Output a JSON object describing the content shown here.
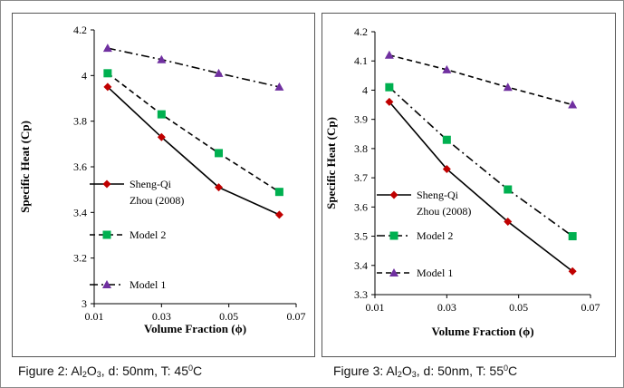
{
  "colors": {
    "model1": "#7030a0",
    "model2": "#00b050",
    "sheng": "#c00000",
    "line": "#000000"
  },
  "chart_data": [
    {
      "type": "line",
      "xlabel": "Volume Fraction (ϕ)",
      "ylabel": "Specific Heat (Cp)",
      "xlim": [
        0.01,
        0.07
      ],
      "ylim": [
        3,
        4.2
      ],
      "xticks": [
        "0.01",
        "0.03",
        "0.05",
        "0.07"
      ],
      "yticks": [
        "3",
        "3.2",
        "3.4",
        "3.6",
        "3.8",
        "4",
        "4.2"
      ],
      "grid": false,
      "legend_position": "left-inside",
      "series": [
        {
          "name": "Sheng-Qi Zhou (2008)",
          "legend_lines": [
            "Sheng-Qi",
            "Zhou (2008)"
          ],
          "marker": "diamond",
          "color_key": "sheng",
          "dash": "solid",
          "x": [
            0.014,
            0.03,
            0.047,
            0.065
          ],
          "y": [
            3.95,
            3.73,
            3.51,
            3.39
          ]
        },
        {
          "name": "Model 2",
          "legend_lines": [
            "Model 2"
          ],
          "marker": "square",
          "color_key": "model2",
          "dash": "dashed",
          "x": [
            0.014,
            0.03,
            0.047,
            0.065
          ],
          "y": [
            4.01,
            3.83,
            3.66,
            3.49
          ]
        },
        {
          "name": "Model 1",
          "legend_lines": [
            "Model 1"
          ],
          "marker": "triangle",
          "color_key": "model1",
          "dash": "dashdot",
          "x": [
            0.014,
            0.03,
            0.047,
            0.065
          ],
          "y": [
            4.12,
            4.07,
            4.01,
            3.95
          ]
        }
      ]
    },
    {
      "type": "line",
      "xlabel": "Volume Fraction (ϕ)",
      "ylabel": "Specific Heat (Cp)",
      "xlim": [
        0.01,
        0.07
      ],
      "ylim": [
        3.3,
        4.2
      ],
      "xticks": [
        "0.01",
        "0.03",
        "0.05",
        "0.07"
      ],
      "yticks": [
        "3.3",
        "3.4",
        "3.5",
        "3.6",
        "3.7",
        "3.8",
        "3.9",
        "4",
        "4.1",
        "4.2"
      ],
      "grid": false,
      "legend_position": "left-inside",
      "series": [
        {
          "name": "Sheng-Qi Zhou (2008)",
          "legend_lines": [
            "Sheng-Qi",
            "Zhou (2008)"
          ],
          "marker": "diamond",
          "color_key": "sheng",
          "dash": "solid",
          "x": [
            0.014,
            0.03,
            0.047,
            0.065
          ],
          "y": [
            3.96,
            3.73,
            3.55,
            3.38
          ]
        },
        {
          "name": "Model 2",
          "legend_lines": [
            "Model 2"
          ],
          "marker": "square",
          "color_key": "model2",
          "dash": "dashdot",
          "x": [
            0.014,
            0.03,
            0.047,
            0.065
          ],
          "y": [
            4.01,
            3.83,
            3.66,
            3.5
          ]
        },
        {
          "name": "Model 1",
          "legend_lines": [
            "Model 1"
          ],
          "marker": "triangle",
          "color_key": "model1",
          "dash": "dashed",
          "x": [
            0.014,
            0.03,
            0.047,
            0.065
          ],
          "y": [
            4.12,
            4.07,
            4.01,
            3.95
          ]
        }
      ]
    }
  ],
  "captions": [
    {
      "prefix": "Figure 2: Al",
      "sub1": "2",
      "mid": "O",
      "sub2": "3",
      "after": ", d: 50nm, T: 45",
      "sup": "0",
      "suffix": "C"
    },
    {
      "prefix": "Figure 3: Al",
      "sub1": "2",
      "mid": "O",
      "sub2": "3",
      "after": ", d: 50nm, T: 55",
      "sup": "0",
      "suffix": "C"
    }
  ]
}
